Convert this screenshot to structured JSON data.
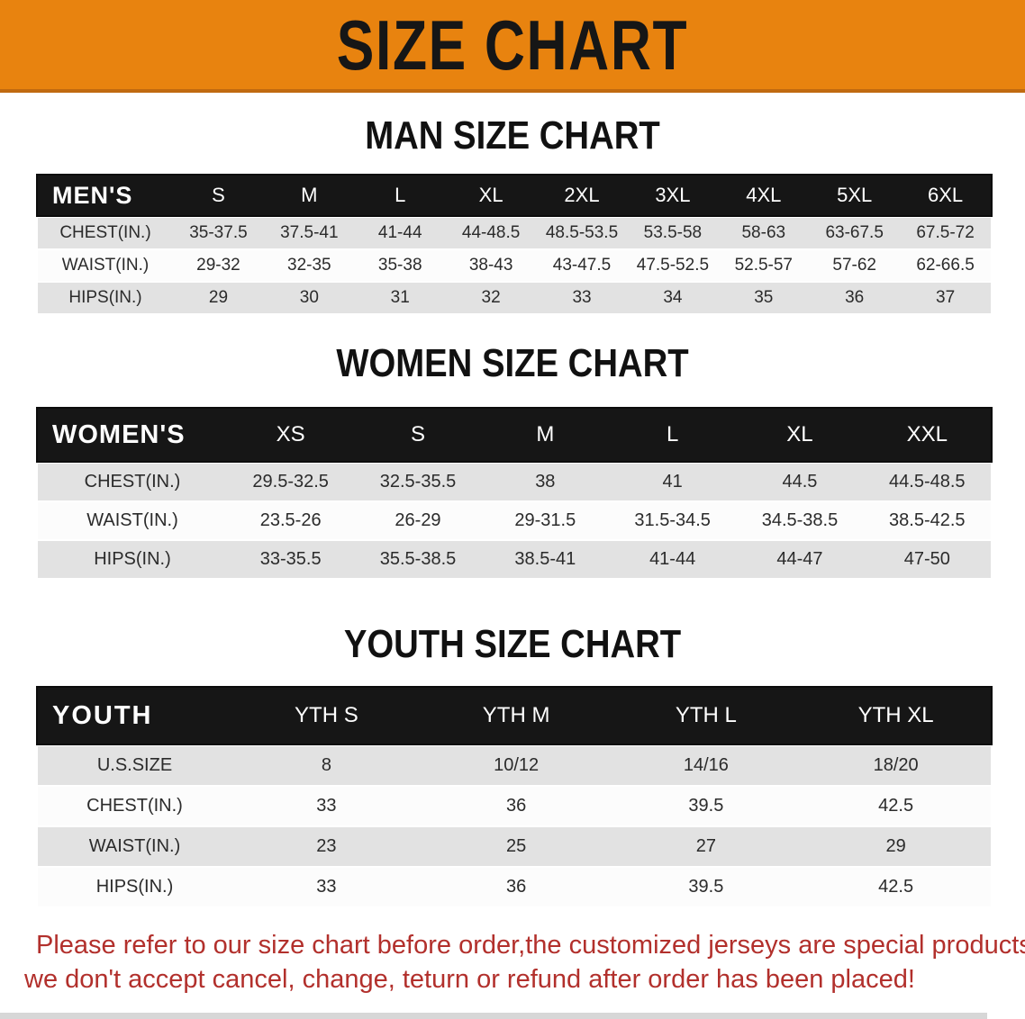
{
  "banner": {
    "title": "SIZE CHART"
  },
  "colors": {
    "banner_orange": "#E8830F",
    "banner_border": "#C06A10",
    "table_header_black": "#161616",
    "row_gray": "#E2E2E2",
    "row_white": "#FCFCFC",
    "note_red": "#B2302C"
  },
  "sections": [
    {
      "heading": "MAN SIZE CHART",
      "table": {
        "header_label": "MEN'S",
        "columns": [
          "S",
          "M",
          "L",
          "XL",
          "2XL",
          "3XL",
          "4XL",
          "5XL",
          "6XL"
        ],
        "rows": [
          {
            "label": "CHEST(IN.)",
            "values": [
              "35-37.5",
              "37.5-41",
              "41-44",
              "44-48.5",
              "48.5-53.5",
              "53.5-58",
              "58-63",
              "63-67.5",
              "67.5-72"
            ]
          },
          {
            "label": "WAIST(IN.)",
            "values": [
              "29-32",
              "32-35",
              "35-38",
              "38-43",
              "43-47.5",
              "47.5-52.5",
              "52.5-57",
              "57-62",
              "62-66.5"
            ]
          },
          {
            "label": "HIPS(IN.)",
            "values": [
              "29",
              "30",
              "31",
              "32",
              "33",
              "34",
              "35",
              "36",
              "37"
            ]
          }
        ]
      }
    },
    {
      "heading": "WOMEN SIZE CHART",
      "table": {
        "header_label": "WOMEN'S",
        "columns": [
          "XS",
          "S",
          "M",
          "L",
          "XL",
          "XXL"
        ],
        "rows": [
          {
            "label": "CHEST(IN.)",
            "values": [
              "29.5-32.5",
              "32.5-35.5",
              "38",
              "41",
              "44.5",
              "44.5-48.5"
            ]
          },
          {
            "label": "WAIST(IN.)",
            "values": [
              "23.5-26",
              "26-29",
              "29-31.5",
              "31.5-34.5",
              "34.5-38.5",
              "38.5-42.5"
            ]
          },
          {
            "label": "HIPS(IN.)",
            "values": [
              "33-35.5",
              "35.5-38.5",
              "38.5-41",
              "41-44",
              "44-47",
              "47-50"
            ]
          }
        ]
      }
    },
    {
      "heading": "YOUTH SIZE CHART",
      "table": {
        "header_label": "YOUTH",
        "columns": [
          "YTH S",
          "YTH M",
          "YTH L",
          "YTH XL"
        ],
        "rows": [
          {
            "label": "U.S.SIZE",
            "values": [
              "8",
              "10/12",
              "14/16",
              "18/20"
            ]
          },
          {
            "label": "CHEST(IN.)",
            "values": [
              "33",
              "36",
              "39.5",
              "42.5"
            ]
          },
          {
            "label": "WAIST(IN.)",
            "values": [
              "23",
              "25",
              "27",
              "29"
            ]
          },
          {
            "label": "HIPS(IN.)",
            "values": [
              "33",
              "36",
              "39.5",
              "42.5"
            ]
          }
        ]
      }
    }
  ],
  "footer": {
    "line1": "Please refer to our size chart before order,the customized jerseys are special products,",
    "line2": "we don't accept cancel, change, teturn or refund after order has been placed!"
  }
}
